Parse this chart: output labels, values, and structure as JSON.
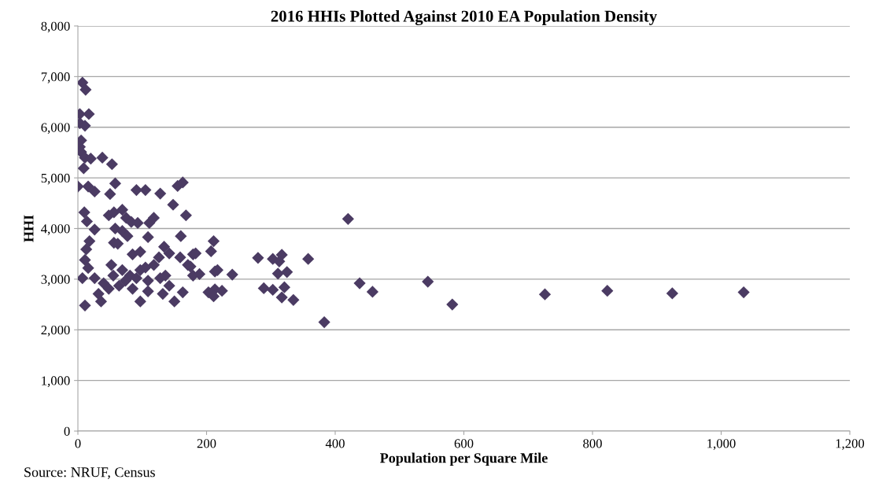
{
  "chart_data": {
    "type": "scatter",
    "title": "2016 HHIs Plotted Against 2010 EA Population Density",
    "xlabel": "Population per Square Mile",
    "ylabel": "HHI",
    "annotations": [
      "Source: NRUF, Census"
    ],
    "series": [
      {
        "color": "#4b3b63",
        "x": [
          7,
          12,
          3,
          17,
          3,
          11,
          5,
          3,
          5,
          11,
          20,
          38,
          53,
          9,
          0,
          16,
          26,
          58,
          50,
          91,
          105,
          128,
          155,
          163,
          148,
          168,
          10,
          14,
          26,
          48,
          56,
          69,
          75,
          83,
          93,
          111,
          118,
          58,
          69,
          77,
          109,
          160,
          18,
          13,
          11,
          16,
          56,
          62,
          85,
          97,
          134,
          142,
          126,
          159,
          171,
          179,
          179,
          7,
          26,
          40,
          52,
          55,
          69,
          81,
          74,
          91,
          97,
          105,
          118,
          128,
          136,
          142,
          48,
          32,
          36,
          97,
          109,
          132,
          150,
          163,
          11,
          64,
          85,
          109,
          211,
          207,
          183,
          175,
          189,
          213,
          217,
          240,
          213,
          203,
          211,
          224,
          280,
          303,
          317,
          313,
          311,
          325,
          358,
          289,
          303,
          321,
          317,
          335,
          383,
          420,
          438,
          458,
          544,
          582,
          726,
          823,
          924,
          1035
        ],
        "values": [
          6880,
          6740,
          6260,
          6260,
          6080,
          6030,
          5740,
          5610,
          5510,
          5400,
          5380,
          5400,
          5270,
          5190,
          4830,
          4830,
          4730,
          4890,
          4680,
          4760,
          4760,
          4690,
          4840,
          4910,
          4470,
          4260,
          4320,
          4140,
          3980,
          4260,
          4320,
          4370,
          4210,
          4130,
          4110,
          4110,
          4210,
          4000,
          3950,
          3850,
          3830,
          3850,
          3750,
          3590,
          3380,
          3220,
          3720,
          3700,
          3490,
          3540,
          3640,
          3510,
          3430,
          3430,
          3280,
          3490,
          3070,
          3020,
          3020,
          2920,
          3280,
          3070,
          3180,
          3070,
          2970,
          3020,
          3180,
          3230,
          3280,
          3020,
          3070,
          2870,
          2810,
          2710,
          2560,
          2560,
          2760,
          2710,
          2560,
          2740,
          2480,
          2870,
          2810,
          2970,
          3750,
          3550,
          3510,
          3250,
          3100,
          3150,
          3180,
          3090,
          2800,
          2740,
          2660,
          2770,
          3420,
          3400,
          3480,
          3350,
          3110,
          3140,
          3400,
          2820,
          2790,
          2840,
          2640,
          2590,
          2150,
          4190,
          2920,
          2750,
          2950,
          2500,
          2700,
          2770,
          2720,
          2740
        ]
      }
    ],
    "marker": "diamond",
    "grid": "y",
    "legend": false,
    "xlim": [
      0,
      1200
    ],
    "xticks": [
      0,
      200,
      400,
      600,
      800,
      {
        "value": 1000,
        "label": "1,000"
      },
      {
        "value": 1200,
        "label": "1,200"
      }
    ],
    "ylim": [
      0,
      8000
    ],
    "yticks": [
      0,
      {
        "value": 1000,
        "label": "1,000"
      },
      {
        "value": 2000,
        "label": "2,000"
      },
      {
        "value": 3000,
        "label": "3,000"
      },
      {
        "value": 4000,
        "label": "4,000"
      },
      {
        "value": 5000,
        "label": "5,000"
      },
      {
        "value": 6000,
        "label": "6,000"
      },
      {
        "value": 7000,
        "label": "7,000"
      },
      {
        "value": 8000,
        "label": "8,000"
      }
    ]
  }
}
